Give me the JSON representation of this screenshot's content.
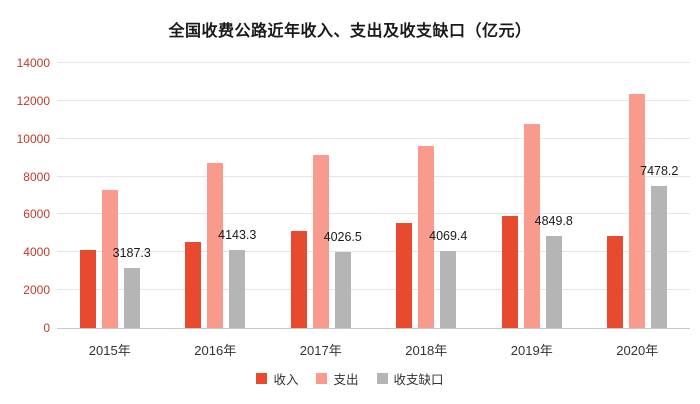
{
  "colors": {
    "income": "#e84a2f",
    "expenditure": "#f89a8c",
    "gap": "#b5b5b5",
    "y_axis_label": "#c0392b",
    "x_axis_label": "#333333",
    "title": "#1a1a1a",
    "data_label": "#1a1a1a",
    "legend_label": "#333333",
    "gridline": "#e5e5e5",
    "axis_line": "#c9c9c9",
    "background": "#ffffff"
  },
  "chart_data": {
    "type": "bar",
    "title": "全国收费公路近年收入、支出及收支缺口（亿元）",
    "categories": [
      "2015年",
      "2016年",
      "2017年",
      "2018年",
      "2019年",
      "2020年"
    ],
    "series": [
      {
        "name": "收入",
        "key": "income",
        "values": [
          4097.8,
          4548.5,
          5130.2,
          5552.4,
          5937.9,
          4868.2
        ],
        "data_labels": false
      },
      {
        "name": "支出",
        "key": "expenditure",
        "values": [
          7285.1,
          8691.7,
          9156.7,
          9621.8,
          10787.7,
          12346.4
        ],
        "data_labels": false
      },
      {
        "name": "收支缺口",
        "key": "gap",
        "values": [
          3187.3,
          4143.3,
          4026.5,
          4069.4,
          4849.8,
          7478.2
        ],
        "data_labels": true
      }
    ],
    "data_label_texts": [
      "3187.3",
      "4143.3",
      "4026.5",
      "4069.4",
      "4849.8",
      "7478.2"
    ],
    "xlabel": "",
    "ylabel": "",
    "ylim": [
      0,
      14000
    ],
    "ytick_step": 2000,
    "yticks": [
      "0",
      "2000",
      "4000",
      "6000",
      "8000",
      "10000",
      "12000",
      "14000"
    ],
    "grid": true,
    "legend_position": "bottom",
    "legend_entries": [
      "收入",
      "支出",
      "收支缺口"
    ]
  }
}
